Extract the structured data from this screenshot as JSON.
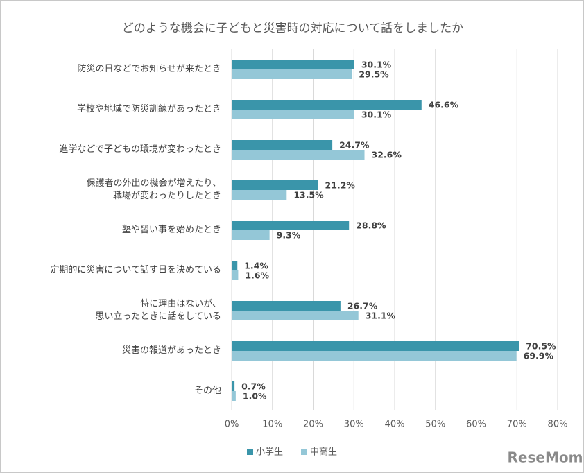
{
  "chart_data": {
    "type": "hbar",
    "title": "どのような機会に子どもと災害時の対応について話をしましたか",
    "categories": [
      "防災の日などでお知らせが来たとき",
      "学校や地域で防災訓練があったとき",
      "進学などで子どもの環境が変わったとき",
      "保護者の外出の機会が増えたり、\n職場が変わったりしたとき",
      "塾や習い事を始めたとき",
      "定期的に災害について話す日を決めている",
      "特に理由はないが、\n思い立ったときに話をしている",
      "災害の報道があったとき",
      "その他"
    ],
    "series": [
      {
        "name": "小学生",
        "color": "#3a95aa",
        "values": [
          30.1,
          46.6,
          24.7,
          21.2,
          28.8,
          1.4,
          26.7,
          70.5,
          0.7
        ],
        "value_labels": [
          "30.1%",
          "46.6%",
          "24.7%",
          "21.2%",
          "28.8%",
          "1.4%",
          "26.7%",
          "70.5%",
          "0.7%"
        ]
      },
      {
        "name": "中高生",
        "color": "#94c7d7",
        "values": [
          29.5,
          30.1,
          32.6,
          13.5,
          9.3,
          1.6,
          31.1,
          69.9,
          1.0
        ],
        "value_labels": [
          "29.5%",
          "30.1%",
          "32.6%",
          "13.5%",
          "9.3%",
          "1.6%",
          "31.1%",
          "69.9%",
          "1.0%"
        ]
      }
    ],
    "xlim": [
      0,
      80
    ],
    "xticks": [
      {
        "value": 0,
        "label": "0%"
      },
      {
        "value": 10,
        "label": "10%"
      },
      {
        "value": 20,
        "label": "20%"
      },
      {
        "value": 30,
        "label": "30%"
      },
      {
        "value": 40,
        "label": "40%"
      },
      {
        "value": 50,
        "label": "50%"
      },
      {
        "value": 60,
        "label": "60%"
      },
      {
        "value": 70,
        "label": "70%"
      },
      {
        "value": 80,
        "label": "80%"
      }
    ],
    "grid": true,
    "legend": "bottom",
    "watermark": "ReseMom"
  }
}
